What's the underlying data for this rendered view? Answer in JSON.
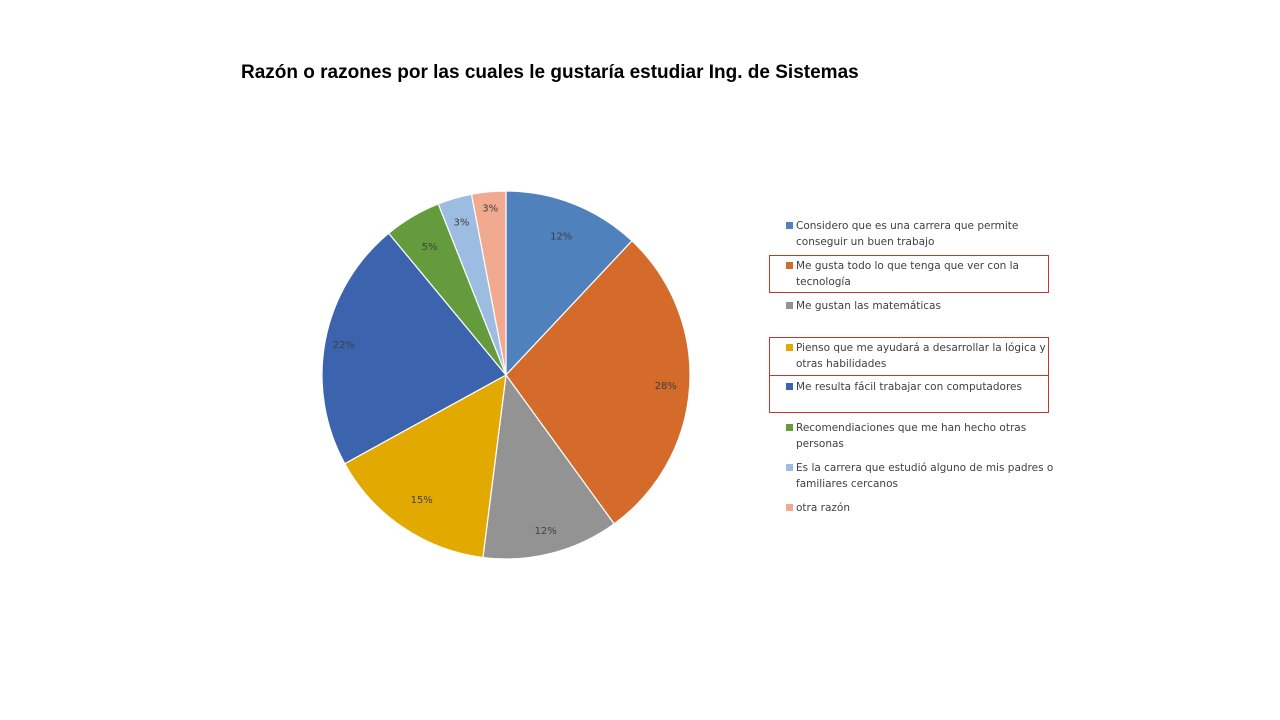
{
  "chart_data": {
    "type": "pie",
    "title": "Razón o razones por las cuales le gustaría estudiar Ing. de Sistemas",
    "categories": [
      "Considero que es una carrera que permite conseguir un buen trabajo",
      "Me gusta todo lo que tenga que ver con la tecnología",
      "Me gustan las matemáticas",
      "Pienso que me ayudará a desarrollar la lógica y otras habilidades",
      "Me resulta fácil trabajar con computadores",
      "Recomendiaciones que me han hecho otras personas",
      "Es la carrera que estudió alguno de mis padres o familiares cercanos",
      "otra razón"
    ],
    "values": [
      12,
      28,
      12,
      15,
      22,
      5,
      3,
      3
    ],
    "labels": [
      "12%",
      "28%",
      "12%",
      "15%",
      "22%",
      "5%",
      "3%",
      "3%"
    ],
    "colors": [
      "#4f81bd",
      "#d46b2b",
      "#939393",
      "#e2a900",
      "#3c64ae",
      "#649b3c",
      "#9dbce2",
      "#f1a98f"
    ],
    "legend_position": "right",
    "highlighted_legend_entries": [
      1,
      3,
      4
    ]
  }
}
